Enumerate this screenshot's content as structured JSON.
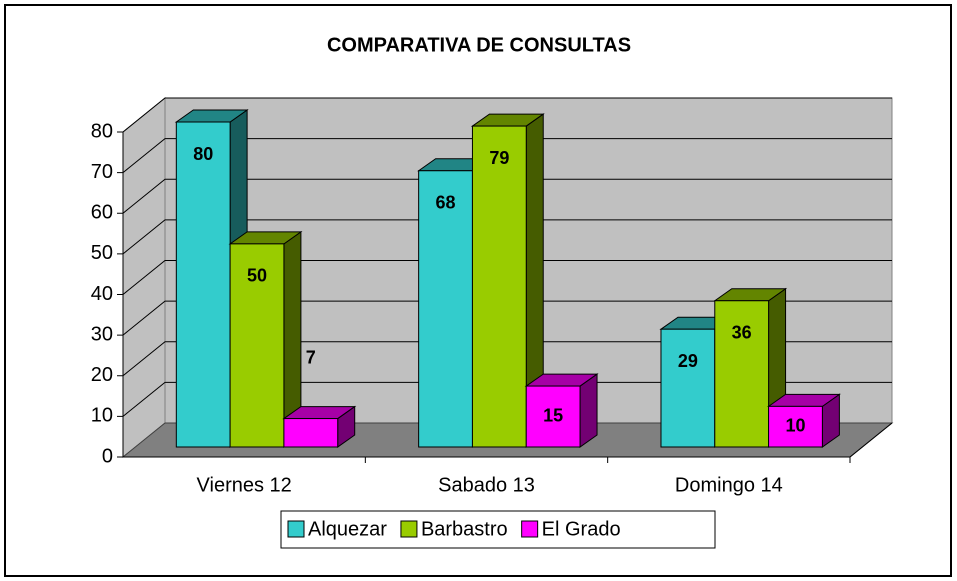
{
  "chart_data": {
    "type": "bar3d",
    "title": "COMPARATIVA DE CONSULTAS",
    "categories": [
      "Viernes 12",
      "Sabado 13",
      "Domingo 14"
    ],
    "series": [
      {
        "name": "Alquezar",
        "color": "#33cccc",
        "values": [
          80,
          68,
          29
        ]
      },
      {
        "name": "Barbastro",
        "color": "#99cc00",
        "values": [
          50,
          79,
          36
        ]
      },
      {
        "name": "El Grado",
        "color": "#ff00ff",
        "values": [
          7,
          15,
          10
        ]
      }
    ],
    "ylim": [
      0,
      80
    ],
    "yticks": [
      0,
      10,
      20,
      30,
      40,
      50,
      60,
      70,
      80
    ],
    "grid": true,
    "legend": "bottom"
  }
}
